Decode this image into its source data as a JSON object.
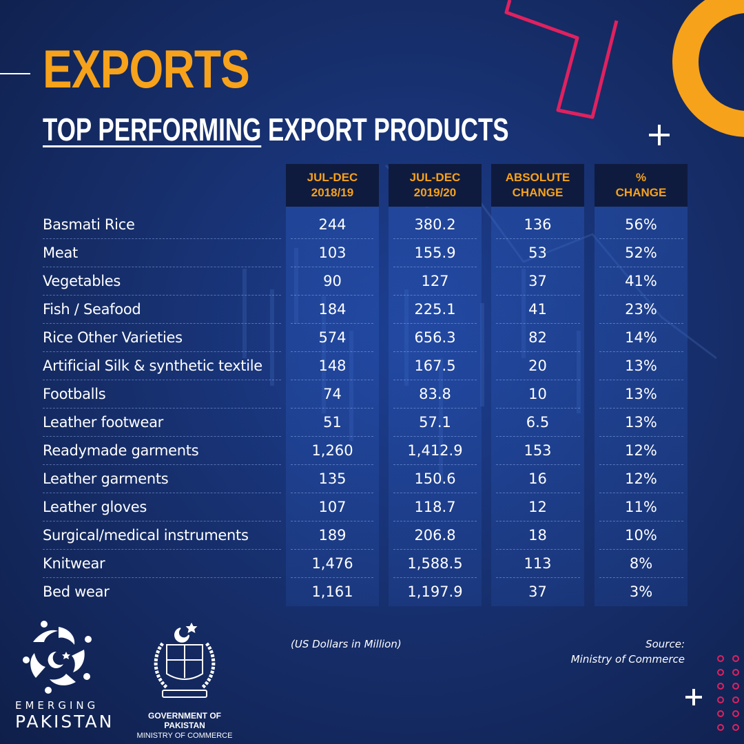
{
  "title": "EXPORTS",
  "subtitle": {
    "underlined": "TOP PERFORMING",
    "rest": "EXPORT PRODUCTS"
  },
  "chart_data": {
    "type": "table",
    "columns": [
      {
        "line1": "JUL-DEC",
        "line2": "2018/19"
      },
      {
        "line1": "JUL-DEC",
        "line2": "2019/20"
      },
      {
        "line1": "ABSOLUTE",
        "line2": "CHANGE"
      },
      {
        "line1": "%",
        "line2": "CHANGE"
      }
    ],
    "rows": [
      {
        "product": "Basmati Rice",
        "values": [
          "244",
          "380.2",
          "136",
          "56%"
        ]
      },
      {
        "product": "Meat",
        "values": [
          "103",
          "155.9",
          "53",
          "52%"
        ]
      },
      {
        "product": "Vegetables",
        "values": [
          "90",
          "127",
          "37",
          "41%"
        ]
      },
      {
        "product": "Fish / Seafood",
        "values": [
          "184",
          "225.1",
          "41",
          "23%"
        ]
      },
      {
        "product": "Rice Other Varieties",
        "values": [
          "574",
          "656.3",
          "82",
          "14%"
        ]
      },
      {
        "product": "Artificial Silk & synthetic textile",
        "values": [
          "148",
          "167.5",
          "20",
          "13%"
        ]
      },
      {
        "product": "Footballs",
        "values": [
          "74",
          "83.8",
          "10",
          "13%"
        ]
      },
      {
        "product": "Leather footwear",
        "values": [
          "51",
          "57.1",
          "6.5",
          "13%"
        ]
      },
      {
        "product": "Readymade garments",
        "values": [
          "1,260",
          "1,412.9",
          "153",
          "12%"
        ]
      },
      {
        "product": "Leather garments",
        "values": [
          "135",
          "150.6",
          "16",
          "12%"
        ]
      },
      {
        "product": "Leather gloves",
        "values": [
          "107",
          "118.7",
          "12",
          "11%"
        ]
      },
      {
        "product": "Surgical/medical instruments",
        "values": [
          "189",
          "206.8",
          "18",
          "10%"
        ]
      },
      {
        "product": "Knitwear",
        "values": [
          "1,476",
          "1,588.5",
          "113",
          "8%"
        ]
      },
      {
        "product": "Bed wear",
        "values": [
          "1,161",
          "1,197.9",
          "37",
          "3%"
        ]
      }
    ],
    "unit_note": "(US Dollars in Million)",
    "source_label": "Source:",
    "source_name": "Ministry of Commerce"
  },
  "branding": {
    "left_logo_top": "EMERGING",
    "left_logo_bottom": "PAKISTAN",
    "gov_line1": "GOVERNMENT OF PAKISTAN",
    "gov_line2": "MINISTRY OF COMMERCE"
  },
  "colors": {
    "accent": "#f7a21b",
    "pink": "#e0215f",
    "header_bg": "#0f1b3e",
    "background": "#17306f"
  },
  "icons": [
    "plus-icon",
    "emerging-pakistan-logo-icon",
    "state-emblem-icon",
    "dot-grid-icon",
    "ring-shape-icon",
    "bracket-shape-icon"
  ]
}
